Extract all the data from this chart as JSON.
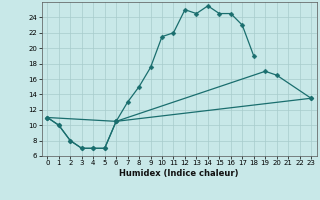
{
  "xlabel": "Humidex (Indice chaleur)",
  "bg_color": "#c8e8e8",
  "grid_color": "#a8cccc",
  "line_color": "#1a6e6e",
  "xlim": [
    -0.5,
    23.5
  ],
  "ylim": [
    6,
    26
  ],
  "xticks": [
    0,
    1,
    2,
    3,
    4,
    5,
    6,
    7,
    8,
    9,
    10,
    11,
    12,
    13,
    14,
    15,
    16,
    17,
    18,
    19,
    20,
    21,
    22,
    23
  ],
  "yticks": [
    6,
    8,
    10,
    12,
    14,
    16,
    18,
    20,
    22,
    24
  ],
  "curve1_x": [
    0,
    1,
    2,
    3,
    4,
    5,
    6,
    7,
    8,
    9,
    10,
    11,
    12,
    13,
    14,
    15,
    16,
    17,
    18
  ],
  "curve1_y": [
    11,
    10,
    8,
    7,
    7,
    7,
    10.5,
    13,
    15,
    17.5,
    21.5,
    22,
    25,
    24.5,
    25.5,
    24.5,
    24.5,
    23,
    19
  ],
  "curve2_x": [
    0,
    1,
    2,
    3,
    4,
    5,
    6,
    19,
    20,
    23
  ],
  "curve2_y": [
    11,
    10,
    8,
    7,
    7,
    7,
    10.5,
    17,
    16.5,
    13.5
  ],
  "curve3_x": [
    0,
    6,
    23
  ],
  "curve3_y": [
    11,
    10.5,
    13.5
  ]
}
